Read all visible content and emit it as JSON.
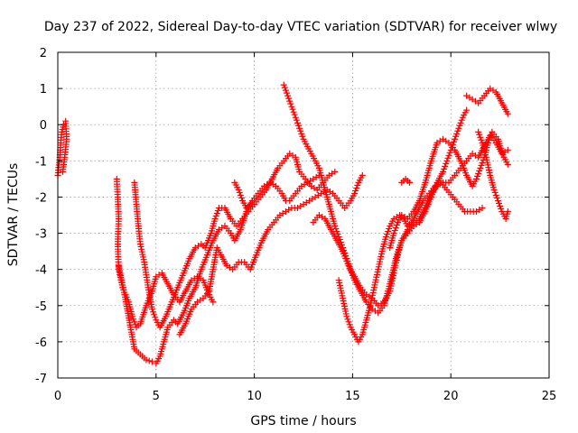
{
  "chart_data": {
    "type": "scatter",
    "title": "Day 237 of 2022, Sidereal Day-to-day VTEC variation (SDTVAR) for receiver wlwy",
    "xlabel": "GPS time / hours",
    "ylabel": "SDTVAR / TECUs",
    "xlim": [
      0,
      25
    ],
    "ylim": [
      -7,
      2
    ],
    "xticks": [
      "0",
      "5",
      "10",
      "15",
      "20",
      "25"
    ],
    "yticks": [
      "-7",
      "-6",
      "-5",
      "-4",
      "-3",
      "-2",
      "-1",
      "0",
      "1",
      "2"
    ],
    "grid": true,
    "marker": "+",
    "color": "#ff0000",
    "series": [
      {
        "name": "track-1",
        "points": [
          [
            0.0,
            -1.4
          ],
          [
            0.1,
            -0.9
          ],
          [
            0.15,
            -0.5
          ],
          [
            0.2,
            -0.2
          ],
          [
            0.3,
            0.0
          ],
          [
            0.4,
            0.1
          ],
          [
            0.45,
            -0.4
          ],
          [
            0.35,
            -0.9
          ],
          [
            0.25,
            -1.3
          ]
        ]
      },
      {
        "name": "track-2",
        "points": [
          [
            3.0,
            -1.5
          ],
          [
            3.05,
            -2.0
          ],
          [
            3.1,
            -2.6
          ],
          [
            3.05,
            -3.3
          ],
          [
            3.1,
            -4.0
          ],
          [
            3.3,
            -4.5
          ],
          [
            3.6,
            -4.9
          ],
          [
            3.8,
            -5.3
          ],
          [
            4.0,
            -5.6
          ],
          [
            4.2,
            -5.5
          ],
          [
            4.5,
            -5.0
          ],
          [
            4.8,
            -4.6
          ],
          [
            5.0,
            -4.2
          ],
          [
            5.3,
            -4.1
          ],
          [
            5.6,
            -4.4
          ],
          [
            5.9,
            -4.7
          ],
          [
            6.2,
            -4.9
          ],
          [
            6.5,
            -4.6
          ],
          [
            6.8,
            -4.3
          ],
          [
            7.1,
            -4.2
          ],
          [
            7.4,
            -4.3
          ],
          [
            7.7,
            -4.7
          ],
          [
            7.9,
            -4.9
          ]
        ]
      },
      {
        "name": "track-3",
        "points": [
          [
            3.1,
            -3.9
          ],
          [
            3.4,
            -4.7
          ],
          [
            3.7,
            -5.6
          ],
          [
            3.9,
            -6.2
          ],
          [
            4.1,
            -6.3
          ],
          [
            4.3,
            -6.4
          ],
          [
            4.5,
            -6.5
          ],
          [
            4.8,
            -6.55
          ],
          [
            5.0,
            -6.6
          ],
          [
            5.2,
            -6.4
          ],
          [
            5.4,
            -6.0
          ],
          [
            5.6,
            -5.6
          ],
          [
            5.9,
            -5.4
          ],
          [
            6.1,
            -5.5
          ],
          [
            6.4,
            -5.2
          ],
          [
            6.7,
            -4.8
          ],
          [
            7.0,
            -4.5
          ],
          [
            7.3,
            -4.0
          ],
          [
            7.6,
            -3.6
          ],
          [
            7.9,
            -3.2
          ],
          [
            8.2,
            -2.9
          ],
          [
            8.5,
            -2.8
          ],
          [
            8.8,
            -3.0
          ],
          [
            9.0,
            -3.2
          ],
          [
            9.3,
            -2.9
          ],
          [
            9.6,
            -2.4
          ],
          [
            9.9,
            -2.1
          ],
          [
            10.2,
            -1.9
          ],
          [
            10.5,
            -1.7
          ],
          [
            10.8,
            -1.6
          ],
          [
            11.1,
            -1.7
          ],
          [
            11.4,
            -1.9
          ],
          [
            11.6,
            -2.1
          ],
          [
            11.8,
            -2.1
          ],
          [
            12.1,
            -1.9
          ],
          [
            12.4,
            -1.7
          ],
          [
            12.7,
            -1.6
          ],
          [
            13.0,
            -1.5
          ],
          [
            13.3,
            -1.4
          ]
        ]
      },
      {
        "name": "track-4",
        "points": [
          [
            3.9,
            -1.6
          ],
          [
            4.0,
            -2.2
          ],
          [
            4.1,
            -2.8
          ],
          [
            4.2,
            -3.3
          ],
          [
            4.4,
            -3.8
          ],
          [
            4.6,
            -4.5
          ],
          [
            4.8,
            -5.1
          ],
          [
            5.0,
            -5.4
          ],
          [
            5.2,
            -5.6
          ],
          [
            5.5,
            -5.3
          ],
          [
            5.8,
            -4.9
          ],
          [
            6.1,
            -4.5
          ],
          [
            6.4,
            -4.1
          ],
          [
            6.7,
            -3.7
          ],
          [
            7.0,
            -3.4
          ],
          [
            7.3,
            -3.3
          ],
          [
            7.5,
            -3.4
          ],
          [
            7.8,
            -3.0
          ],
          [
            8.0,
            -2.6
          ],
          [
            8.2,
            -2.3
          ],
          [
            8.5,
            -2.3
          ],
          [
            8.8,
            -2.6
          ],
          [
            9.1,
            -2.8
          ],
          [
            9.4,
            -2.6
          ],
          [
            9.7,
            -2.4
          ],
          [
            10.0,
            -2.2
          ],
          [
            10.3,
            -2.0
          ],
          [
            10.6,
            -1.8
          ],
          [
            10.9,
            -1.5
          ],
          [
            11.2,
            -1.2
          ],
          [
            11.5,
            -1.0
          ],
          [
            11.8,
            -0.8
          ],
          [
            12.1,
            -0.9
          ],
          [
            12.3,
            -1.3
          ],
          [
            12.6,
            -1.5
          ],
          [
            12.9,
            -1.7
          ],
          [
            13.2,
            -1.8
          ],
          [
            13.5,
            -1.6
          ],
          [
            13.8,
            -1.4
          ],
          [
            14.1,
            -1.3
          ]
        ]
      },
      {
        "name": "track-5",
        "points": [
          [
            6.2,
            -5.8
          ],
          [
            6.5,
            -5.5
          ],
          [
            6.8,
            -5.1
          ],
          [
            7.1,
            -4.9
          ],
          [
            7.4,
            -4.8
          ],
          [
            7.7,
            -4.6
          ],
          [
            7.9,
            -4.0
          ],
          [
            8.1,
            -3.4
          ],
          [
            8.3,
            -3.6
          ],
          [
            8.6,
            -3.9
          ],
          [
            8.9,
            -4.0
          ],
          [
            9.2,
            -3.8
          ],
          [
            9.5,
            -3.8
          ],
          [
            9.8,
            -4.0
          ],
          [
            10.1,
            -3.6
          ],
          [
            10.4,
            -3.2
          ],
          [
            10.7,
            -2.9
          ],
          [
            11.0,
            -2.7
          ],
          [
            11.3,
            -2.5
          ],
          [
            11.6,
            -2.4
          ],
          [
            11.9,
            -2.3
          ],
          [
            12.2,
            -2.3
          ],
          [
            12.5,
            -2.2
          ],
          [
            12.8,
            -2.1
          ],
          [
            13.1,
            -2.0
          ],
          [
            13.4,
            -1.9
          ],
          [
            13.7,
            -1.8
          ],
          [
            14.0,
            -1.9
          ],
          [
            14.3,
            -2.1
          ],
          [
            14.6,
            -2.3
          ],
          [
            14.9,
            -2.1
          ],
          [
            15.1,
            -1.9
          ],
          [
            15.3,
            -1.6
          ],
          [
            15.5,
            -1.4
          ]
        ]
      },
      {
        "name": "track-6",
        "points": [
          [
            9.0,
            -1.6
          ],
          [
            9.2,
            -1.8
          ],
          [
            9.4,
            -2.1
          ],
          [
            9.6,
            -2.3
          ],
          [
            9.8,
            -2.2
          ]
        ]
      },
      {
        "name": "track-7",
        "points": [
          [
            11.5,
            1.1
          ],
          [
            11.7,
            0.8
          ],
          [
            11.9,
            0.5
          ],
          [
            12.1,
            0.2
          ],
          [
            12.3,
            -0.1
          ],
          [
            12.5,
            -0.4
          ],
          [
            12.7,
            -0.6
          ],
          [
            12.9,
            -0.8
          ],
          [
            13.1,
            -1.0
          ],
          [
            13.3,
            -1.2
          ],
          [
            13.5,
            -1.6
          ],
          [
            13.7,
            -2.0
          ],
          [
            13.9,
            -2.4
          ],
          [
            14.1,
            -2.8
          ],
          [
            14.3,
            -3.1
          ],
          [
            14.5,
            -3.4
          ],
          [
            14.7,
            -3.7
          ],
          [
            14.9,
            -4.0
          ],
          [
            15.1,
            -4.2
          ],
          [
            15.4,
            -4.5
          ],
          [
            15.7,
            -4.7
          ],
          [
            16.0,
            -4.8
          ],
          [
            16.3,
            -5.0
          ],
          [
            16.6,
            -4.9
          ],
          [
            16.9,
            -4.6
          ],
          [
            17.1,
            -4.1
          ],
          [
            17.3,
            -3.6
          ],
          [
            17.5,
            -3.2
          ],
          [
            17.8,
            -3.0
          ],
          [
            18.1,
            -2.8
          ],
          [
            18.4,
            -2.7
          ],
          [
            18.7,
            -2.4
          ],
          [
            19.0,
            -2.0
          ],
          [
            19.3,
            -1.6
          ],
          [
            19.6,
            -1.3
          ],
          [
            19.8,
            -1.0
          ],
          [
            20.0,
            -0.7
          ],
          [
            20.2,
            -0.4
          ],
          [
            20.4,
            -0.1
          ],
          [
            20.6,
            0.2
          ],
          [
            20.8,
            0.4
          ]
        ]
      },
      {
        "name": "track-8",
        "points": [
          [
            13.0,
            -2.7
          ],
          [
            13.3,
            -2.5
          ],
          [
            13.6,
            -2.6
          ],
          [
            13.9,
            -2.9
          ],
          [
            14.2,
            -3.2
          ],
          [
            14.5,
            -3.5
          ],
          [
            14.8,
            -3.9
          ],
          [
            15.1,
            -4.3
          ],
          [
            15.4,
            -4.6
          ],
          [
            15.7,
            -4.9
          ],
          [
            16.0,
            -5.1
          ],
          [
            16.3,
            -5.2
          ],
          [
            16.6,
            -5.0
          ],
          [
            16.9,
            -4.4
          ],
          [
            17.2,
            -3.7
          ],
          [
            17.5,
            -3.2
          ],
          [
            17.8,
            -2.9
          ],
          [
            18.1,
            -2.7
          ],
          [
            18.4,
            -2.6
          ],
          [
            18.7,
            -2.3
          ],
          [
            19.0,
            -1.9
          ],
          [
            19.3,
            -1.7
          ],
          [
            19.6,
            -1.6
          ],
          [
            19.9,
            -1.6
          ],
          [
            20.2,
            -1.4
          ],
          [
            20.5,
            -1.2
          ],
          [
            20.8,
            -1.0
          ],
          [
            21.1,
            -0.8
          ],
          [
            21.4,
            -0.9
          ],
          [
            21.7,
            -0.6
          ],
          [
            22.0,
            -0.3
          ],
          [
            22.3,
            -0.5
          ],
          [
            22.6,
            -0.8
          ],
          [
            22.9,
            -0.7
          ]
        ]
      },
      {
        "name": "track-9",
        "points": [
          [
            14.3,
            -4.3
          ],
          [
            14.5,
            -4.8
          ],
          [
            14.7,
            -5.3
          ],
          [
            14.9,
            -5.6
          ],
          [
            15.1,
            -5.8
          ],
          [
            15.3,
            -6.0
          ],
          [
            15.5,
            -5.8
          ],
          [
            15.7,
            -5.4
          ],
          [
            15.9,
            -5.0
          ],
          [
            16.1,
            -4.5
          ],
          [
            16.3,
            -4.0
          ],
          [
            16.5,
            -3.5
          ],
          [
            16.7,
            -3.1
          ],
          [
            16.9,
            -2.8
          ],
          [
            17.1,
            -2.6
          ],
          [
            17.4,
            -2.5
          ],
          [
            17.6,
            -2.6
          ],
          [
            17.8,
            -2.8
          ],
          [
            18.0,
            -2.7
          ],
          [
            18.3,
            -2.4
          ],
          [
            18.6,
            -2.1
          ],
          [
            18.9,
            -1.9
          ],
          [
            19.2,
            -1.7
          ],
          [
            19.5,
            -1.6
          ],
          [
            19.8,
            -1.8
          ],
          [
            20.1,
            -2.0
          ],
          [
            20.4,
            -2.2
          ],
          [
            20.7,
            -2.4
          ],
          [
            21.0,
            -2.4
          ],
          [
            21.3,
            -2.4
          ],
          [
            21.6,
            -2.3
          ]
        ]
      },
      {
        "name": "track-10",
        "points": [
          [
            16.9,
            -3.4
          ],
          [
            17.1,
            -3.0
          ],
          [
            17.3,
            -2.7
          ],
          [
            17.5,
            -2.5
          ],
          [
            17.8,
            -2.6
          ],
          [
            18.1,
            -2.4
          ],
          [
            18.4,
            -2.1
          ],
          [
            18.7,
            -1.6
          ],
          [
            19.0,
            -1.0
          ],
          [
            19.3,
            -0.5
          ],
          [
            19.6,
            -0.4
          ],
          [
            19.9,
            -0.5
          ],
          [
            20.2,
            -0.7
          ],
          [
            20.5,
            -1.0
          ],
          [
            20.8,
            -1.4
          ],
          [
            21.1,
            -1.7
          ],
          [
            21.3,
            -1.5
          ],
          [
            21.5,
            -1.2
          ],
          [
            21.7,
            -0.9
          ],
          [
            21.9,
            -0.5
          ],
          [
            22.1,
            -0.2
          ],
          [
            22.4,
            -0.4
          ],
          [
            22.7,
            -0.9
          ],
          [
            22.9,
            -1.1
          ]
        ]
      },
      {
        "name": "track-11",
        "points": [
          [
            17.5,
            -1.6
          ],
          [
            17.7,
            -1.5
          ],
          [
            17.9,
            -1.6
          ]
        ]
      },
      {
        "name": "track-12",
        "points": [
          [
            20.8,
            0.8
          ],
          [
            21.1,
            0.7
          ],
          [
            21.4,
            0.6
          ],
          [
            21.7,
            0.8
          ],
          [
            22.0,
            1.0
          ],
          [
            22.3,
            0.9
          ],
          [
            22.6,
            0.6
          ],
          [
            22.9,
            0.3
          ]
        ]
      },
      {
        "name": "track-13",
        "points": [
          [
            21.4,
            -0.2
          ],
          [
            21.6,
            -0.5
          ],
          [
            21.8,
            -0.9
          ],
          [
            22.0,
            -1.4
          ],
          [
            22.2,
            -1.8
          ],
          [
            22.4,
            -2.1
          ],
          [
            22.6,
            -2.4
          ],
          [
            22.8,
            -2.6
          ],
          [
            22.9,
            -2.4
          ]
        ]
      }
    ]
  }
}
